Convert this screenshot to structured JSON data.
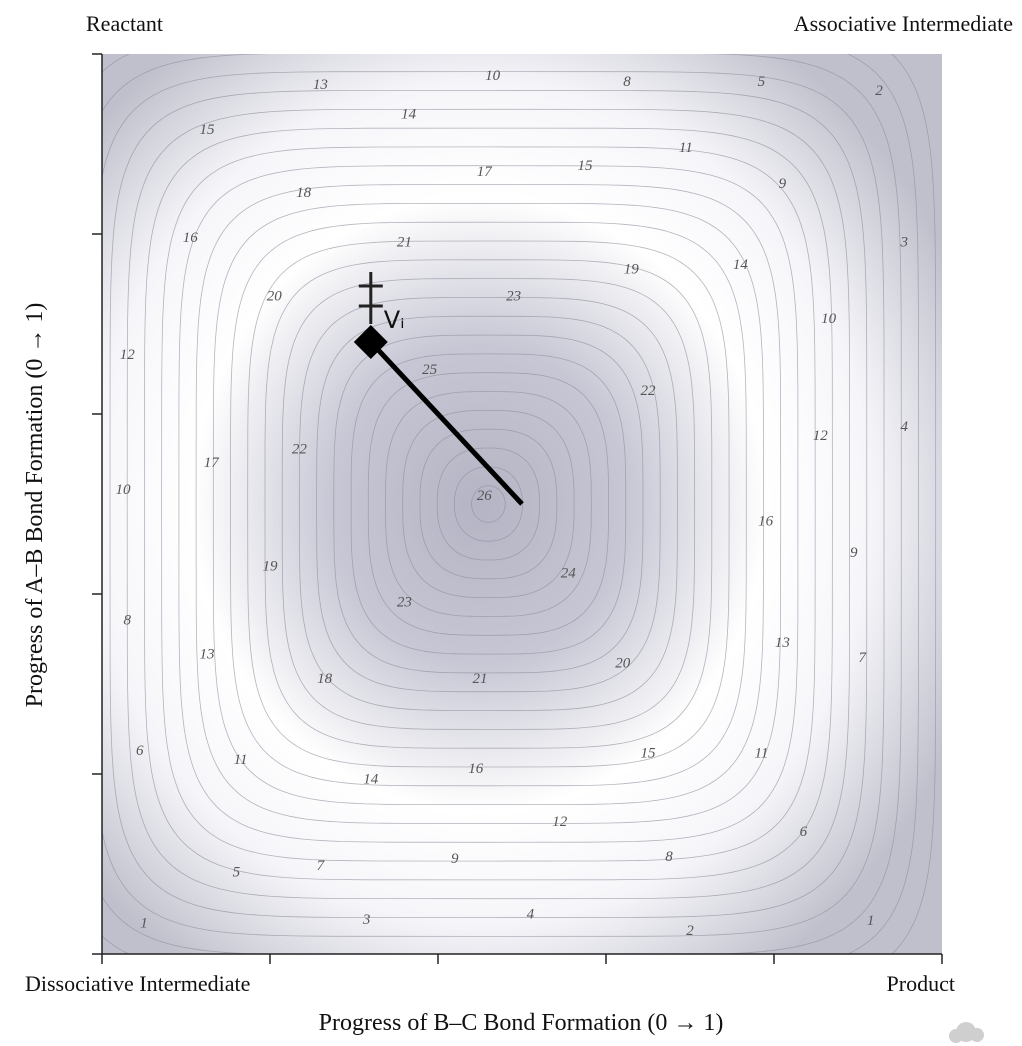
{
  "chart_data": {
    "type": "contour",
    "corner_labels": {
      "top_left": "Reactant",
      "top_right": "Associative Intermediate",
      "bottom_left": "Dissociative Intermediate",
      "bottom_right": "Product"
    },
    "colors": {
      "associative": "#d40000",
      "dissociative": "#1f5fa8",
      "plot_bg": "#b4b4c4",
      "contour_line": "#8e8e9c"
    },
    "xlabel": "Progress of B–C Bond Formation (0 → 1)",
    "ylabel": "Progress of A–B Bond Formation (0 → 1)",
    "xlim": [
      0,
      1
    ],
    "ylim": [
      0,
      1
    ],
    "x_ticks": [
      0,
      0.2,
      0.4,
      0.6,
      0.8,
      1.0
    ],
    "y_ticks": [
      0,
      0.2,
      0.4,
      0.6,
      0.8,
      1.0
    ],
    "grid": false,
    "transition_state": {
      "label": "Vᵢ",
      "x": 0.32,
      "y": 0.68
    },
    "reaction_path": [
      [
        0.32,
        0.68
      ],
      [
        0.5,
        0.5
      ]
    ],
    "contour_labels": [
      {
        "text": "13",
        "x": 0.26,
        "y": 0.965
      },
      {
        "text": "10",
        "x": 0.465,
        "y": 0.975
      },
      {
        "text": "8",
        "x": 0.625,
        "y": 0.968
      },
      {
        "text": "5",
        "x": 0.785,
        "y": 0.968
      },
      {
        "text": "2",
        "x": 0.925,
        "y": 0.958
      },
      {
        "text": "15",
        "x": 0.125,
        "y": 0.915
      },
      {
        "text": "14",
        "x": 0.365,
        "y": 0.932
      },
      {
        "text": "11",
        "x": 0.695,
        "y": 0.895
      },
      {
        "text": "17",
        "x": 0.455,
        "y": 0.868
      },
      {
        "text": "15",
        "x": 0.575,
        "y": 0.875
      },
      {
        "text": "9",
        "x": 0.81,
        "y": 0.855
      },
      {
        "text": "18",
        "x": 0.24,
        "y": 0.845
      },
      {
        "text": "16",
        "x": 0.105,
        "y": 0.795
      },
      {
        "text": "21",
        "x": 0.36,
        "y": 0.79
      },
      {
        "text": "3",
        "x": 0.955,
        "y": 0.79
      },
      {
        "text": "20",
        "x": 0.205,
        "y": 0.73
      },
      {
        "text": "19",
        "x": 0.63,
        "y": 0.76
      },
      {
        "text": "14",
        "x": 0.76,
        "y": 0.765
      },
      {
        "text": "23",
        "x": 0.49,
        "y": 0.73
      },
      {
        "text": "10",
        "x": 0.865,
        "y": 0.705
      },
      {
        "text": "12",
        "x": 0.03,
        "y": 0.665
      },
      {
        "text": "25",
        "x": 0.39,
        "y": 0.648
      },
      {
        "text": "22",
        "x": 0.65,
        "y": 0.625
      },
      {
        "text": "4",
        "x": 0.955,
        "y": 0.585
      },
      {
        "text": "12",
        "x": 0.855,
        "y": 0.575
      },
      {
        "text": "22",
        "x": 0.235,
        "y": 0.56
      },
      {
        "text": "17",
        "x": 0.13,
        "y": 0.545
      },
      {
        "text": "26",
        "x": 0.455,
        "y": 0.508
      },
      {
        "text": "10",
        "x": 0.025,
        "y": 0.515
      },
      {
        "text": "16",
        "x": 0.79,
        "y": 0.48
      },
      {
        "text": "9",
        "x": 0.895,
        "y": 0.445
      },
      {
        "text": "19",
        "x": 0.2,
        "y": 0.43
      },
      {
        "text": "24",
        "x": 0.555,
        "y": 0.422
      },
      {
        "text": "23",
        "x": 0.36,
        "y": 0.39
      },
      {
        "text": "8",
        "x": 0.03,
        "y": 0.37
      },
      {
        "text": "13",
        "x": 0.125,
        "y": 0.332
      },
      {
        "text": "13",
        "x": 0.81,
        "y": 0.345
      },
      {
        "text": "7",
        "x": 0.905,
        "y": 0.328
      },
      {
        "text": "20",
        "x": 0.62,
        "y": 0.322
      },
      {
        "text": "18",
        "x": 0.265,
        "y": 0.305
      },
      {
        "text": "21",
        "x": 0.45,
        "y": 0.305
      },
      {
        "text": "6",
        "x": 0.045,
        "y": 0.225
      },
      {
        "text": "11",
        "x": 0.165,
        "y": 0.215
      },
      {
        "text": "15",
        "x": 0.65,
        "y": 0.222
      },
      {
        "text": "11",
        "x": 0.785,
        "y": 0.222
      },
      {
        "text": "16",
        "x": 0.445,
        "y": 0.205
      },
      {
        "text": "14",
        "x": 0.32,
        "y": 0.193
      },
      {
        "text": "12",
        "x": 0.545,
        "y": 0.146
      },
      {
        "text": "6",
        "x": 0.835,
        "y": 0.135
      },
      {
        "text": "9",
        "x": 0.42,
        "y": 0.105
      },
      {
        "text": "8",
        "x": 0.675,
        "y": 0.107
      },
      {
        "text": "7",
        "x": 0.26,
        "y": 0.097
      },
      {
        "text": "5",
        "x": 0.16,
        "y": 0.09
      },
      {
        "text": "4",
        "x": 0.51,
        "y": 0.043
      },
      {
        "text": "3",
        "x": 0.315,
        "y": 0.037
      },
      {
        "text": "2",
        "x": 0.7,
        "y": 0.025
      },
      {
        "text": "1",
        "x": 0.05,
        "y": 0.033
      },
      {
        "text": "1",
        "x": 0.915,
        "y": 0.036
      }
    ]
  }
}
